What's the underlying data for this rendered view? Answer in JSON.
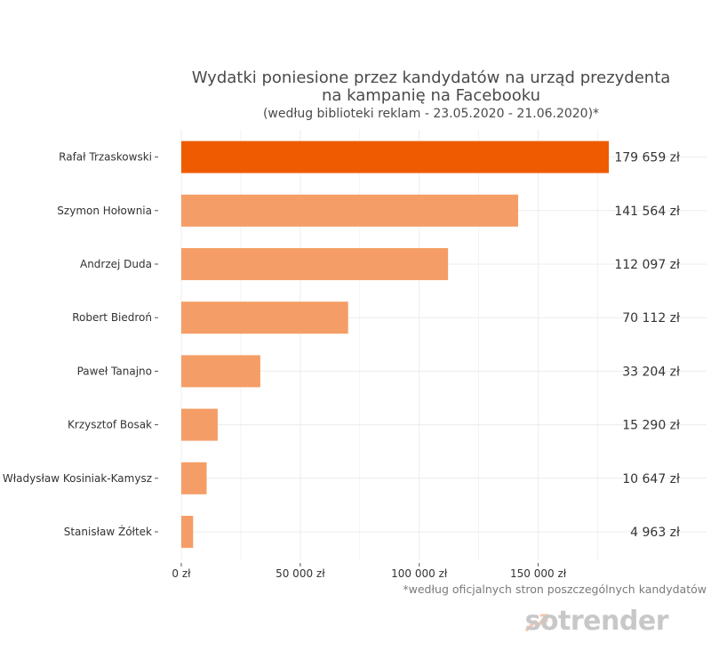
{
  "chart_data": {
    "type": "bar",
    "orientation": "horizontal",
    "title_line1": "Wydatki poniesione przez kandydatów na urząd prezydenta",
    "title_line2": "na kampanię na Facebooku",
    "subtitle": "(według biblioteki reklam - 23.05.2020 - 21.06.2020)*",
    "categories": [
      "Rafał Trzaskowski",
      "Szymon Hołownia",
      "Andrzej Duda",
      "Robert Biedroń",
      "Paweł Tanajno",
      "Krzysztof Bosak",
      "Władysław Kosiniak-Kamysz",
      "Stanisław Żółtek"
    ],
    "values": [
      179659,
      141564,
      112097,
      70112,
      33204,
      15290,
      10647,
      4963
    ],
    "value_labels": [
      "179 659 zł",
      "141 564 zł",
      "112 097 zł",
      "70 112 zł",
      "33 204 zł",
      "15 290 zł",
      "10 647 zł",
      "4 963 zł"
    ],
    "highlight_index": 0,
    "x_ticks": [
      0,
      50000,
      100000,
      150000
    ],
    "x_tick_labels": [
      "0 zł",
      "50 000 zł",
      "100 000 zł",
      "150 000 zł"
    ],
    "xlim": [
      0,
      220000
    ],
    "grid": true,
    "colors": {
      "highlight": "#ef5b00",
      "bar": "#f59d66",
      "grid": "#ececec"
    },
    "footnote": "*według oficjalnych stron poszczególnych kandydatów"
  },
  "branding": {
    "logo": "sotrender",
    "logo_icon": "sotrender-icon"
  }
}
